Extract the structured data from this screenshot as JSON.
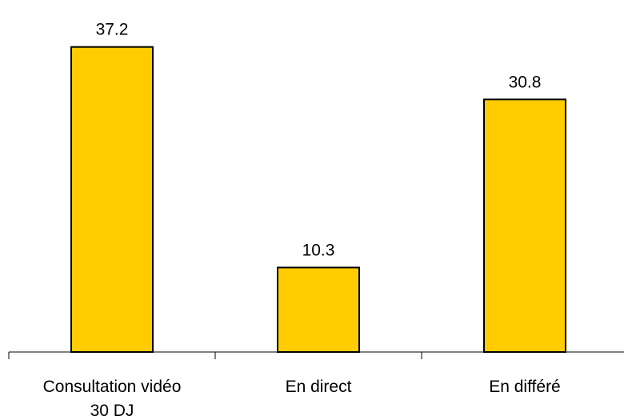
{
  "chart_data": {
    "type": "bar",
    "categories": [
      [
        "Consultation vidéo",
        "30 DJ"
      ],
      [
        "En direct"
      ],
      [
        "En différé"
      ]
    ],
    "values": [
      37.2,
      10.3,
      30.8
    ],
    "data_labels": [
      "37.2",
      "10.3",
      "30.8"
    ],
    "title": "",
    "xlabel": "",
    "ylabel": "",
    "ylim": [
      0,
      40
    ],
    "grid": false,
    "legend": "none",
    "bar_color": "#FFCC00",
    "bar_edge_color": "#000000"
  }
}
